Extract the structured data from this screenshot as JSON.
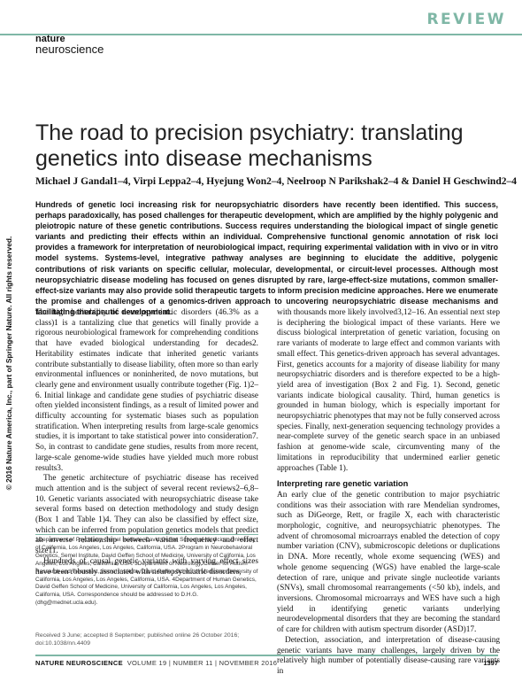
{
  "header": {
    "section_label": "REVIEW",
    "journal_line1": "nature",
    "journal_line2": "neuroscience"
  },
  "article": {
    "title": "The road to precision psychiatry: translating genetics into disease mechanisms",
    "authors": "Michael J Gandal1–4, Virpi Leppa2–4, Hyejung Won2–4, Neelroop N Parikshak2–4 & Daniel H Geschwind2–4",
    "copyright_sidebar": "© 2016 Nature America, Inc., part of Springer Nature. All rights reserved.",
    "abstract": "Hundreds of genetic loci increasing risk for neuropsychiatric disorders have recently been identified. This success, perhaps paradoxically, has posed challenges for therapeutic development, which are amplified by the highly polygenic and pleiotropic nature of these genetic contributions. Success requires understanding the biological impact of single genetic variants and predicting their effects within an individual. Comprehensive functional genomic annotation of risk loci provides a framework for interpretation of neurobiological impact, requiring experimental validation with in vivo or in vitro model systems. Systems-level, integrative pathway analyses are beginning to elucidate the additive, polygenic contributions of risk variants on specific cellular, molecular, developmental, or circuit-level processes. Although most neuropsychiatric disease modeling has focused on genes disrupted by rare, large-effect-size mutations, common smaller-effect-size variants may also provide solid therapeutic targets to inform precision medicine approaches. Here we enumerate the promise and challenges of a genomics-driven approach to uncovering neuropsychiatric disease mechanisms and facilitating therapeutic development."
  },
  "body": {
    "left_p1": "The high heritability of neuropsychiatric disorders (46.3% as a class)1 is a tantalizing clue that genetics will finally provide a rigorous neurobiological framework for comprehending conditions that have evaded biological understanding for decades2. Heritability estimates indicate that inherited genetic variants contribute substantially to disease liability, often more so than early environmental influences or noninherited, de novo mutations, but clearly gene and environment usually contribute together (Fig. 1)2–6. Initial linkage and candidate gene studies of psychiatric disease often yielded inconsistent findings, as a result of limited power and difficulty accounting for systematic biases such as population stratification. When interpreting results from large-scale genomics studies, it is important to take statistical power into consideration7. So, in contrast to candidate gene studies, results from more recent, large-scale genome-wide studies have yielded much more robust results3.",
    "left_p2": "The genetic architecture of psychiatric disease has received much attention and is the subject of several recent reviews2–6,8–10. Genetic variants associated with neuropsychiatric disease take several forms based on detection methodology and study design (Box 1 and Table 1)4. They can also be classified by effect size, which can be inferred from population genetics models that predict an inverse relationship between variant frequency and effect size11.",
    "left_p3": "Hundreds of causal genetic variants with varying effect sizes have been robustly associated with neuropsychiatric disorders,",
    "right_p1": "with thousands more likely involved3,12–16. An essential next step is deciphering the biological impact of these variants. Here we discuss biological interpretation of genetic variation, focusing on rare variants of moderate to large effect and common variants with small effect. This genetics-driven approach has several advantages. First, genetics accounts for a majority of disease liability for many neuropsychiatric disorders and is therefore expected to be a high-yield area of investigation (Box 2 and Fig. 1). Second, genetic variants indicate biological causality. Third, human genetics is grounded in human biology, which is especially important for neuropsychiatric phenotypes that may not be fully conserved across species. Finally, next-generation sequencing technology provides a near-complete survey of the genetic search space in an unbiased fashion at genome-wide scale, circumventing many of the limitations in reproducibility that undermined earlier genetic approaches (Table 1).",
    "right_heading": "Interpreting rare genetic variation",
    "right_p2": "An early clue of the genetic contribution to major psychiatric conditions was their association with rare Mendelian syndromes, such as DiGeorge, Rett, or fragile X, each with characteristic morphologic, cognitive, and neuropsychiatric phenotypes. The advent of chromosomal microarrays enabled the detection of copy number variation (CNV), submicroscopic deletions or duplications in DNA. More recently, whole exome sequencing (WES) and whole genome sequencing (WGS) have enabled the large-scale detection of rare, unique and private single nucleotide variants (SNVs), small chromosomal rearrangements (<50 kb), indels, and inversions. Chromosomal microarrays and WES have such a high yield in identifying genetic variants underlying neurodevelopmental disorders that they are becoming the standard of care for children with autism spectrum disorder (ASD)17.",
    "right_p3": "Detection, association, and interpretation of disease-causing genetic variants have many challenges, largely driven by the relatively high number of potentially disease-causing rare variants in"
  },
  "footnote": {
    "affiliations": "1Department of Psychiatry, Semel Institute, David Geffen School of Medicine, University of California, Los Angeles, Los Angeles, California, USA. 2Program in Neurobehavioral Genetics, Semel Institute, David Geffen School of Medicine, University of California, Los Angeles, Los Angeles, California, USA. 3Department of Neurology, Center for Autism Research and Treatment, Semel Institute, David Geffen School of Medicine, University of California, Los Angeles, Los Angeles, California, USA. 4Department of Human Genetics, David Geffen School of Medicine, University of California, Los Angeles, Los Angeles, California, USA. Correspondence should be addressed to D.H.G. (dhg@mednet.ucla.edu).",
    "received": "Received 3 June; accepted 8 September; published online 26 October 2016; doi:10.1038/nn.4409"
  },
  "footer": {
    "journal": "NATURE NEUROSCIENCE",
    "volume_info": "VOLUME 19 | NUMBER 11 | NOVEMBER 2016",
    "page_number": "1397"
  },
  "colors": {
    "accent": "#7fb7a6"
  }
}
